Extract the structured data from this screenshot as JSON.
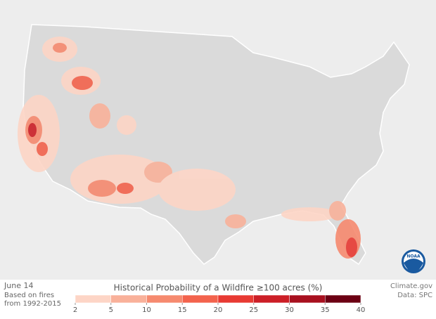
{
  "date": "June 14",
  "note": [
    "Based on fires",
    "from 1992-2015"
  ],
  "legend": {
    "title": "Historical Probability of a Wildfire ≥100 acres (%)",
    "ticks": [
      2,
      5,
      10,
      15,
      20,
      25,
      30,
      35,
      40
    ],
    "colors": [
      "#fdd5c6",
      "#f9b19a",
      "#f68a6f",
      "#f3634d",
      "#e83a33",
      "#cc1f27",
      "#a8101f",
      "#6c0013"
    ]
  },
  "credit": [
    "Climate.gov",
    "Data: SPC"
  ],
  "logo": "NOAA"
}
